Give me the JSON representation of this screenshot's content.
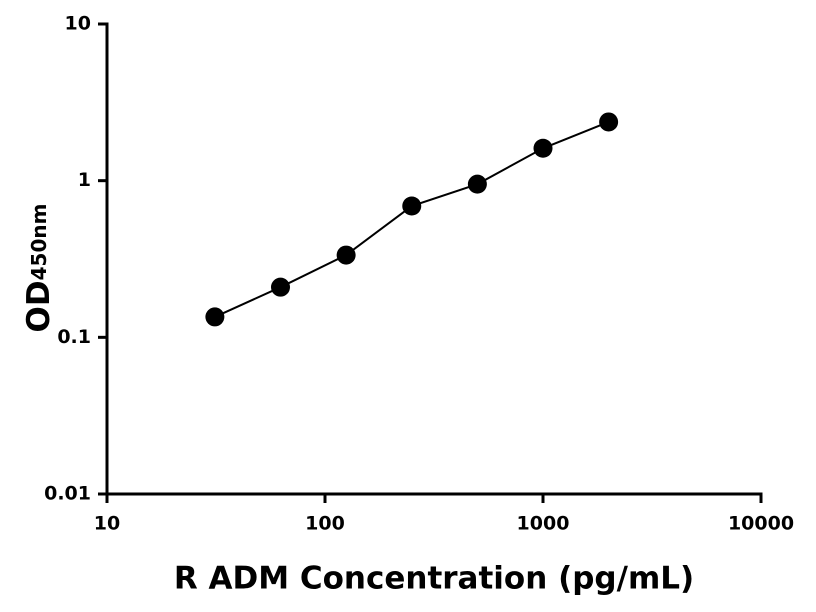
{
  "chart_data": {
    "type": "scatter",
    "x_label": "R ADM Concentration (pg/mL)",
    "y_label": "OD",
    "y_label_sub": "450nm",
    "x": [
      31.25,
      62.5,
      125,
      250,
      500,
      1000,
      2000
    ],
    "series": [
      {
        "color": "#000000",
        "values": [
          0.135,
          0.209,
          0.335,
          0.689,
          0.95,
          1.61,
          2.37
        ]
      }
    ],
    "xlim": [
      10,
      10000
    ],
    "xticks": [
      10,
      100,
      1000,
      10000
    ],
    "ylim": [
      0.01,
      10
    ],
    "yticks": [
      0.01,
      0.1,
      1,
      10
    ],
    "xlog": true,
    "ylog": true,
    "grid": false,
    "fit_line": true
  }
}
